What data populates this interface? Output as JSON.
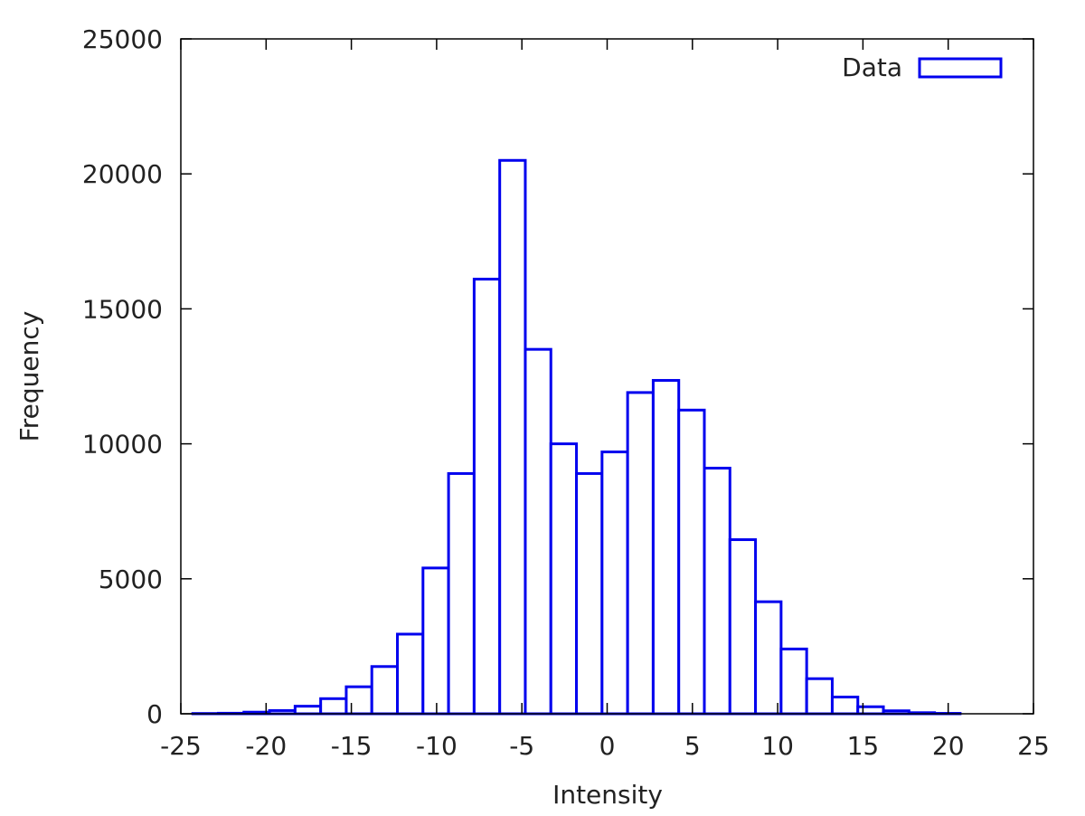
{
  "chart_data": {
    "type": "bar",
    "style": "histogram-outline",
    "bar_color": "#0000ee",
    "fill_color": "#ffffff",
    "xlabel": "Intensity",
    "ylabel": "Frequency",
    "xlim": [
      -25,
      25
    ],
    "ylim": [
      0,
      25000
    ],
    "xticks": [
      "-25",
      "-20",
      "-15",
      "-10",
      "-5",
      "0",
      "5",
      "10",
      "15",
      "20",
      "25"
    ],
    "yticks": [
      "0",
      "5000",
      "10000",
      "15000",
      "20000",
      "25000"
    ],
    "legend": {
      "position": "top-right",
      "label": "Data"
    },
    "grid": false,
    "bin_width": 1.5,
    "bins": [
      {
        "start": -24.3,
        "value": 10
      },
      {
        "start": -22.8,
        "value": 20
      },
      {
        "start": -21.3,
        "value": 60
      },
      {
        "start": -19.8,
        "value": 120
      },
      {
        "start": -18.3,
        "value": 280
      },
      {
        "start": -16.8,
        "value": 560
      },
      {
        "start": -15.3,
        "value": 1000
      },
      {
        "start": -13.8,
        "value": 1750
      },
      {
        "start": -12.3,
        "value": 2950
      },
      {
        "start": -10.8,
        "value": 5400
      },
      {
        "start": -9.3,
        "value": 8900
      },
      {
        "start": -7.8,
        "value": 16100
      },
      {
        "start": -6.3,
        "value": 20500
      },
      {
        "start": -4.8,
        "value": 13500
      },
      {
        "start": -3.3,
        "value": 10000
      },
      {
        "start": -1.8,
        "value": 8900
      },
      {
        "start": -0.3,
        "value": 9700
      },
      {
        "start": 1.2,
        "value": 11900
      },
      {
        "start": 2.7,
        "value": 12350
      },
      {
        "start": 4.2,
        "value": 11250
      },
      {
        "start": 5.7,
        "value": 9100
      },
      {
        "start": 7.2,
        "value": 6450
      },
      {
        "start": 8.7,
        "value": 4150
      },
      {
        "start": 10.2,
        "value": 2400
      },
      {
        "start": 11.7,
        "value": 1300
      },
      {
        "start": 13.2,
        "value": 620
      },
      {
        "start": 14.7,
        "value": 260
      },
      {
        "start": 16.2,
        "value": 110
      },
      {
        "start": 17.7,
        "value": 40
      },
      {
        "start": 19.2,
        "value": 15
      }
    ]
  }
}
